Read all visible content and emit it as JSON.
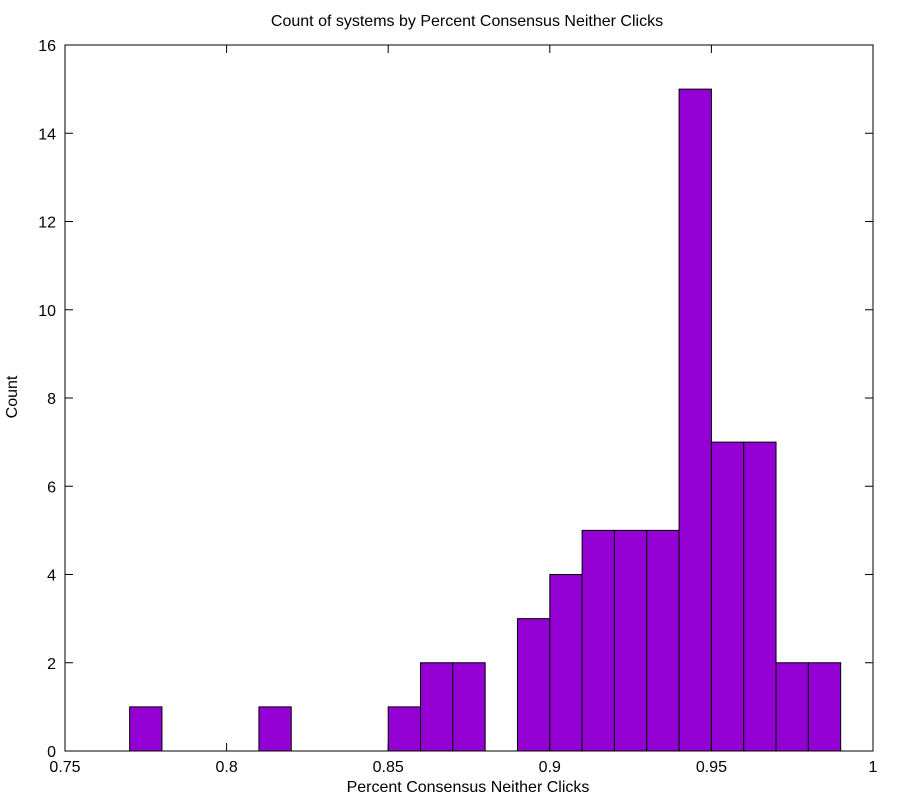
{
  "chart_data": {
    "type": "bar",
    "title": "Count of systems by Percent Consensus Neither Clicks",
    "xlabel": "Percent Consensus Neither Clicks",
    "ylabel": "Count",
    "xlim": [
      0.75,
      1
    ],
    "ylim": [
      0,
      16
    ],
    "xticks": [
      "0.75",
      "0.8",
      "0.85",
      "0.9",
      "0.95",
      "1"
    ],
    "yticks": [
      "0",
      "2",
      "4",
      "6",
      "8",
      "10",
      "12",
      "14",
      "16"
    ],
    "grid": false,
    "bar_color": "#9400D3",
    "bins": [
      {
        "x0": 0.77,
        "x1": 0.78,
        "count": 1
      },
      {
        "x0": 0.81,
        "x1": 0.82,
        "count": 1
      },
      {
        "x0": 0.85,
        "x1": 0.86,
        "count": 1
      },
      {
        "x0": 0.86,
        "x1": 0.87,
        "count": 2
      },
      {
        "x0": 0.87,
        "x1": 0.88,
        "count": 2
      },
      {
        "x0": 0.89,
        "x1": 0.9,
        "count": 3
      },
      {
        "x0": 0.9,
        "x1": 0.91,
        "count": 4
      },
      {
        "x0": 0.91,
        "x1": 0.92,
        "count": 5
      },
      {
        "x0": 0.92,
        "x1": 0.93,
        "count": 5
      },
      {
        "x0": 0.93,
        "x1": 0.94,
        "count": 5
      },
      {
        "x0": 0.94,
        "x1": 0.95,
        "count": 15
      },
      {
        "x0": 0.95,
        "x1": 0.96,
        "count": 7
      },
      {
        "x0": 0.96,
        "x1": 0.97,
        "count": 7
      },
      {
        "x0": 0.97,
        "x1": 0.98,
        "count": 2
      },
      {
        "x0": 0.98,
        "x1": 0.99,
        "count": 2
      }
    ]
  }
}
